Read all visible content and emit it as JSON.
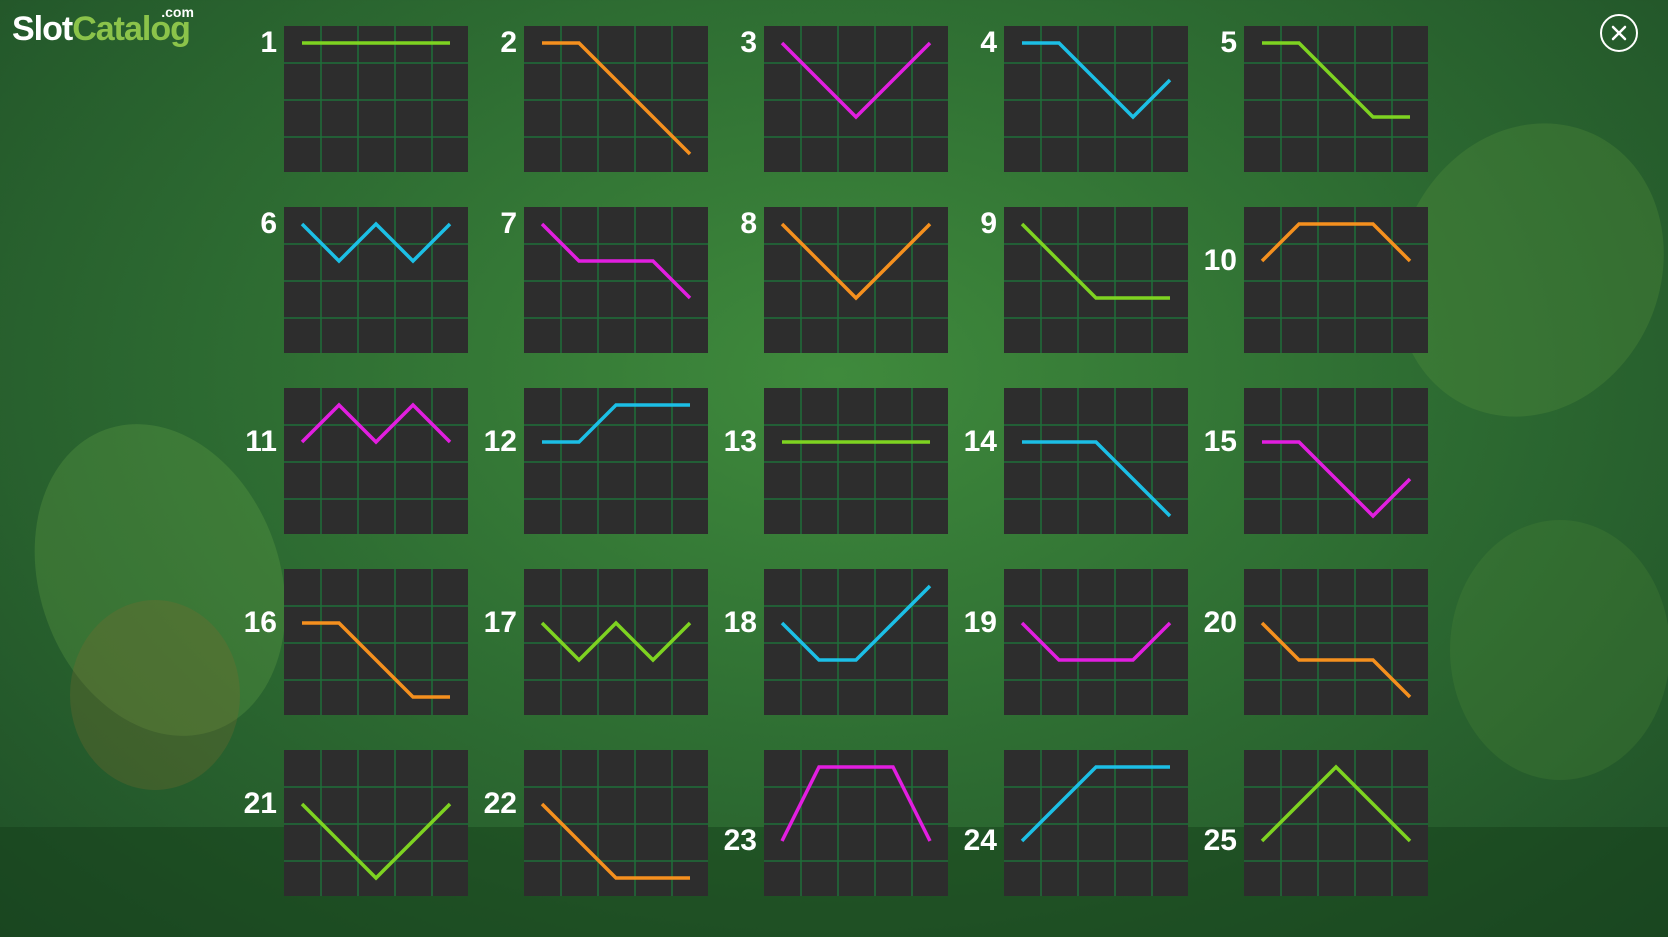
{
  "logo": {
    "main": "Slot",
    "accent": "Catalog",
    "suffix": ".com"
  },
  "close_icon": "close-circle-icon",
  "colors": {
    "green": "#7ed321",
    "orange": "#f5901e",
    "magenta": "#e21ee0",
    "cyan": "#1cbfe6",
    "grid_bg": "#2d2d2d",
    "grid_line": "#1f6f3a"
  },
  "paylines": [
    {
      "label": "1",
      "color": "green",
      "rows": [
        0,
        0,
        0,
        0,
        0
      ]
    },
    {
      "label": "2",
      "color": "orange",
      "rows": [
        0,
        0,
        1,
        2,
        3
      ]
    },
    {
      "label": "3",
      "color": "magenta",
      "rows": [
        0,
        1,
        2,
        1,
        0
      ]
    },
    {
      "label": "4",
      "color": "cyan",
      "rows": [
        0,
        0,
        1,
        2,
        1
      ]
    },
    {
      "label": "5",
      "color": "green",
      "rows": [
        0,
        0,
        1,
        2,
        2
      ]
    },
    {
      "label": "6",
      "color": "cyan",
      "rows": [
        0,
        1,
        0,
        1,
        0
      ]
    },
    {
      "label": "7",
      "color": "magenta",
      "rows": [
        0,
        1,
        1,
        1,
        2
      ]
    },
    {
      "label": "8",
      "color": "orange",
      "rows": [
        0,
        1,
        2,
        1,
        0
      ]
    },
    {
      "label": "9",
      "color": "green",
      "rows": [
        0,
        1,
        2,
        2,
        2
      ]
    },
    {
      "label": "10",
      "color": "orange",
      "rows": [
        1,
        0,
        0,
        0,
        1
      ]
    },
    {
      "label": "11",
      "color": "magenta",
      "rows": [
        1,
        0,
        1,
        0,
        1
      ]
    },
    {
      "label": "12",
      "color": "cyan",
      "rows": [
        1,
        1,
        0,
        0,
        0
      ]
    },
    {
      "label": "13",
      "color": "green",
      "rows": [
        1,
        1,
        1,
        1,
        1
      ]
    },
    {
      "label": "14",
      "color": "cyan",
      "rows": [
        1,
        1,
        1,
        2,
        3
      ]
    },
    {
      "label": "15",
      "color": "magenta",
      "rows": [
        1,
        1,
        2,
        3,
        2
      ]
    },
    {
      "label": "16",
      "color": "orange",
      "rows": [
        1,
        1,
        2,
        3,
        3
      ]
    },
    {
      "label": "17",
      "color": "green",
      "rows": [
        1,
        2,
        1,
        2,
        1
      ]
    },
    {
      "label": "18",
      "color": "cyan",
      "rows": [
        1,
        2,
        2,
        1,
        0
      ]
    },
    {
      "label": "19",
      "color": "magenta",
      "rows": [
        1,
        2,
        2,
        2,
        1
      ]
    },
    {
      "label": "20",
      "color": "orange",
      "rows": [
        1,
        2,
        2,
        2,
        3
      ]
    },
    {
      "label": "21",
      "color": "green",
      "rows": [
        1,
        2,
        3,
        2,
        1
      ]
    },
    {
      "label": "22",
      "color": "orange",
      "rows": [
        1,
        2,
        3,
        3,
        3
      ]
    },
    {
      "label": "23",
      "color": "magenta",
      "rows": [
        2,
        0,
        0,
        0,
        2
      ]
    },
    {
      "label": "24",
      "color": "cyan",
      "rows": [
        2,
        1,
        0,
        0,
        0
      ]
    },
    {
      "label": "25",
      "color": "green",
      "rows": [
        2,
        1,
        0,
        1,
        2
      ]
    }
  ]
}
